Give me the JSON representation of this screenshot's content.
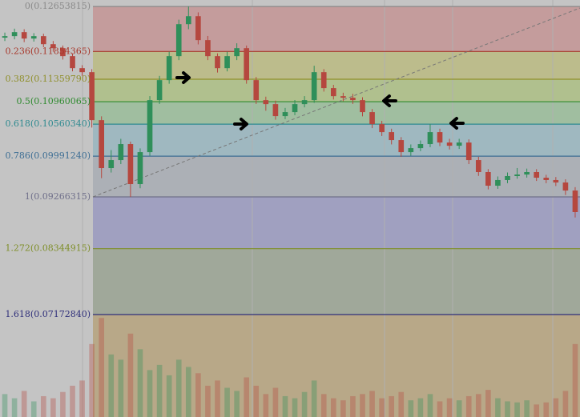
{
  "chart_data": {
    "type": "candlestick",
    "up_color": "#2f8f5a",
    "down_color": "#b5473f",
    "ylim": [
      0.0535,
      0.1277
    ],
    "open": [
      0.121,
      0.12127,
      0.12198,
      0.12084,
      0.12127,
      0.11984,
      0.11913,
      0.11771,
      0.11557,
      0.11486,
      0.10632,
      0.09779,
      0.09921,
      0.10206,
      0.09494,
      0.10063,
      0.10988,
      0.11344,
      0.11771,
      0.1234,
      0.12482,
      0.12056,
      0.11771,
      0.11557,
      0.11771,
      0.11913,
      0.11344,
      0.10988,
      0.10917,
      0.10704,
      0.10775,
      0.10917,
      0.10988,
      0.11486,
      0.11202,
      0.11059,
      0.11031,
      0.10988,
      0.10775,
      0.10561,
      0.10419,
      0.10277,
      0.10063,
      0.10134,
      0.10206,
      0.10419,
      0.10234,
      0.10177,
      0.10234,
      0.09921,
      0.09708,
      0.09466,
      0.09566,
      0.09637,
      0.09665,
      0.09708,
      0.09608,
      0.09566,
      0.09523,
      0.0938
    ],
    "high": [
      0.1219,
      0.1226,
      0.1225,
      0.1218,
      0.1217,
      0.1204,
      0.1196,
      0.1182,
      0.1161,
      0.1154,
      0.107,
      0.101,
      0.103,
      0.1025,
      0.1013,
      0.1106,
      0.1142,
      0.1185,
      0.1242,
      0.12654,
      0.1255,
      0.1213,
      0.1182,
      0.1185,
      0.12,
      0.1196,
      0.114,
      0.1105,
      0.1098,
      0.1085,
      0.1099,
      0.1106,
      0.116,
      0.1154,
      0.1126,
      0.1112,
      0.111,
      0.1104,
      0.1083,
      0.1062,
      0.1048,
      0.1033,
      0.102,
      0.1027,
      0.1056,
      0.1048,
      0.103,
      0.103,
      0.1029,
      0.0998,
      0.0976,
      0.0963,
      0.097,
      0.0978,
      0.0977,
      0.0976,
      0.0966,
      0.0962,
      0.0958,
      0.0944
    ],
    "low": [
      0.1204,
      0.1207,
      0.1202,
      0.1203,
      0.1193,
      0.1185,
      0.1171,
      0.115,
      0.1142,
      0.105,
      0.096,
      0.097,
      0.0985,
      0.09266,
      0.0942,
      0.1,
      0.1092,
      0.1128,
      0.117,
      0.1225,
      0.1198,
      0.117,
      0.1148,
      0.115,
      0.117,
      0.1128,
      0.1092,
      0.108,
      0.1064,
      0.1065,
      0.1072,
      0.1086,
      0.1094,
      0.1114,
      0.11,
      0.1097,
      0.1092,
      0.107,
      0.1049,
      0.1035,
      0.102,
      0.0998,
      0.1,
      0.1008,
      0.1015,
      0.1017,
      0.1011,
      0.1012,
      0.0985,
      0.0964,
      0.094,
      0.0941,
      0.0951,
      0.0959,
      0.0961,
      0.0955,
      0.0951,
      0.0946,
      0.093,
      0.089
    ],
    "close": [
      0.12127,
      0.12198,
      0.12084,
      0.12127,
      0.11984,
      0.11913,
      0.11771,
      0.11557,
      0.11486,
      0.10632,
      0.09779,
      0.09921,
      0.10206,
      0.09494,
      0.10063,
      0.10988,
      0.11344,
      0.11771,
      0.1234,
      0.12482,
      0.12056,
      0.11771,
      0.11557,
      0.11771,
      0.11913,
      0.11344,
      0.10988,
      0.10917,
      0.10704,
      0.10775,
      0.10917,
      0.10988,
      0.11486,
      0.11202,
      0.11059,
      0.11031,
      0.10988,
      0.10775,
      0.10561,
      0.10419,
      0.10277,
      0.10063,
      0.10134,
      0.10206,
      0.10419,
      0.10234,
      0.10177,
      0.10234,
      0.09921,
      0.09708,
      0.09466,
      0.09566,
      0.09637,
      0.09665,
      0.09708,
      0.09608,
      0.09566,
      0.09523,
      0.0938,
      0.08996
    ],
    "volume": {
      "y2lim": [
        0,
        400
      ],
      "values": [
        22,
        18,
        25,
        15,
        20,
        18,
        24,
        30,
        35,
        70,
        95,
        60,
        55,
        80,
        65,
        45,
        50,
        40,
        55,
        48,
        42,
        30,
        35,
        28,
        25,
        38,
        30,
        22,
        28,
        20,
        18,
        24,
        35,
        22,
        18,
        16,
        20,
        22,
        25,
        18,
        20,
        24,
        16,
        18,
        22,
        15,
        18,
        16,
        20,
        22,
        26,
        18,
        15,
        14,
        16,
        12,
        14,
        18,
        25,
        70
      ]
    },
    "fib_levels": [
      {
        "label": "0(0.12653815)",
        "value": 0.12653815,
        "color": "#8a8a8a",
        "fill": "#c49c9c"
      },
      {
        "label": "0.236(0.11854365)",
        "value": 0.11854365,
        "color": "#a8382c",
        "fill": "#bcbc8c"
      },
      {
        "label": "0.382(0.11359790)",
        "value": 0.1135979,
        "color": "#8f8f2a",
        "fill": "#b0c08e"
      },
      {
        "label": "0.5(0.10960065)",
        "value": 0.10960065,
        "color": "#2f8a2f",
        "fill": "#a0bea0"
      },
      {
        "label": "0.618(0.10560340)",
        "value": 0.1056034,
        "color": "#2f8a90",
        "fill": "#9fb8c0"
      },
      {
        "label": "0.786(0.09991240)",
        "value": 0.0999124,
        "color": "#3d6e94",
        "fill": "#acb0b6"
      },
      {
        "label": "1(0.09266315)",
        "value": 0.09266315,
        "color": "#6f6f8a",
        "fill": "#a0a0c0"
      },
      {
        "label": "1.272(0.08344915)",
        "value": 0.08344915,
        "color": "#7f8f2a",
        "fill": "#a0a89a"
      },
      {
        "label": "1.618(0.07172840)",
        "value": 0.0717284,
        "color": "#2f2f7a",
        "fill": "#b8a888"
      }
    ]
  }
}
